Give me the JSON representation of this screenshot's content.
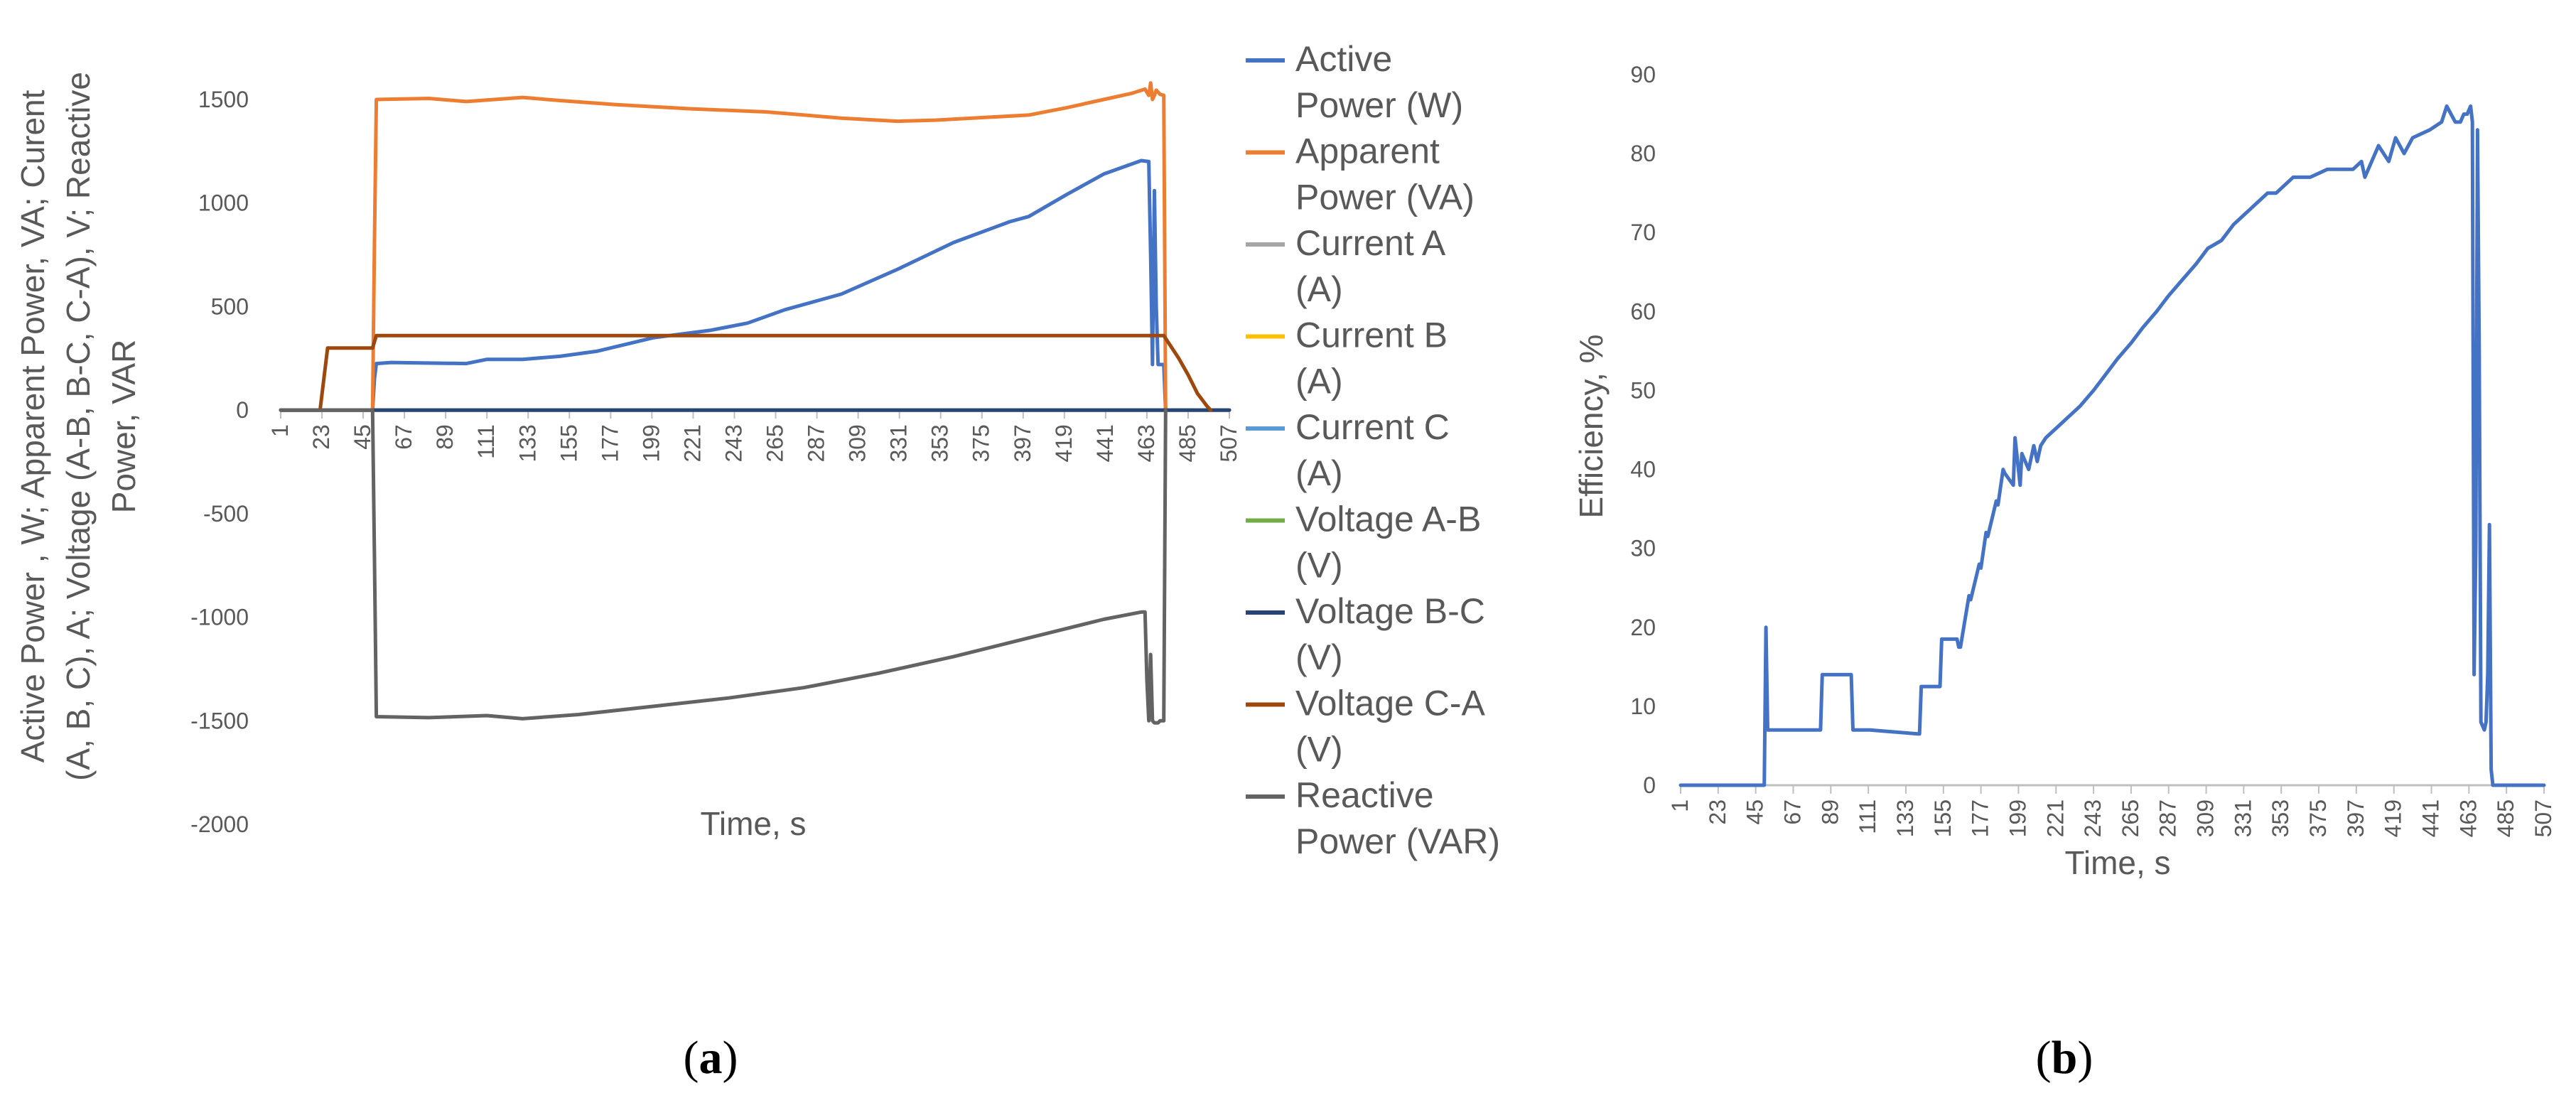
{
  "chart_data": [
    {
      "id": "a",
      "type": "line",
      "panel_label": "a",
      "xlabel": "Time, s",
      "ylabel_lines": [
        "Active Power , W; Apparent Power, VA; Curent",
        "(A, B, C), A; Voltage  (A-B, B-C, C-A), V; Reactive",
        "Power, VAR"
      ],
      "ylim": [
        -2000,
        1500
      ],
      "yticks": [
        1500,
        1000,
        500,
        0,
        -500,
        -1000,
        -1500,
        -2000
      ],
      "xlim": [
        1,
        507
      ],
      "xtick_labels": [
        "1",
        "23",
        "45",
        "67",
        "89",
        "111",
        "133",
        "155",
        "177",
        "199",
        "221",
        "243",
        "265",
        "287",
        "309",
        "331",
        "353",
        "375",
        "397",
        "419",
        "441",
        "463",
        "485",
        "507"
      ],
      "series": [
        {
          "name": "Active Power (W)",
          "legend_lines": [
            "Active",
            "Power (W)"
          ],
          "color": "#4472C4",
          "x": [
            1,
            50,
            51,
            52,
            60,
            100,
            111,
            130,
            150,
            170,
            200,
            230,
            250,
            270,
            300,
            330,
            360,
            390,
            400,
            420,
            440,
            460,
            464,
            465,
            466,
            467,
            468,
            469,
            470,
            472,
            473
          ],
          "y": [
            0,
            0,
            150,
            225,
            230,
            225,
            245,
            245,
            260,
            285,
            350,
            385,
            420,
            485,
            560,
            680,
            810,
            910,
            935,
            1040,
            1140,
            1205,
            1200,
            750,
            220,
            1060,
            500,
            220,
            220,
            220,
            0
          ]
        },
        {
          "name": "Apparent Power (VA)",
          "legend_lines": [
            "Apparent",
            "Power (VA)"
          ],
          "color": "#ED7D31",
          "x": [
            1,
            50,
            51,
            52,
            80,
            100,
            130,
            150,
            180,
            220,
            260,
            300,
            330,
            350,
            380,
            400,
            420,
            440,
            455,
            462,
            464,
            465,
            466,
            467,
            468,
            470,
            472,
            473
          ],
          "y": [
            0,
            0,
            800,
            1500,
            1505,
            1490,
            1510,
            1495,
            1475,
            1455,
            1440,
            1410,
            1395,
            1400,
            1415,
            1425,
            1460,
            1500,
            1530,
            1550,
            1520,
            1580,
            1500,
            1520,
            1545,
            1525,
            1520,
            0
          ]
        },
        {
          "name": "Current A (A)",
          "legend_lines": [
            "Current A",
            "(A)"
          ],
          "color": "#A5A5A5",
          "x": [
            1,
            507
          ],
          "y": [
            0,
            0
          ]
        },
        {
          "name": "Current B (A)",
          "legend_lines": [
            "Current B",
            "(A)"
          ],
          "color": "#FFC000",
          "x": [
            1,
            507
          ],
          "y": [
            0,
            0
          ]
        },
        {
          "name": "Current C (A)",
          "legend_lines": [
            "Current C",
            "(A)"
          ],
          "color": "#5B9BD5",
          "x": [
            1,
            507
          ],
          "y": [
            0,
            0
          ]
        },
        {
          "name": "Voltage A-B (V)",
          "legend_lines": [
            "Voltage A-B",
            "(V)"
          ],
          "color": "#70AD47",
          "x": [
            1,
            507
          ],
          "y": [
            0,
            0
          ]
        },
        {
          "name": "Voltage B-C (V)",
          "legend_lines": [
            "Voltage B-C",
            "(V)"
          ],
          "color": "#264478",
          "x": [
            1,
            507
          ],
          "y": [
            0,
            0
          ]
        },
        {
          "name": "Voltage C-A (V)",
          "legend_lines": [
            "Voltage C-A",
            "(V)"
          ],
          "color": "#9E480E",
          "x": [
            1,
            22,
            26,
            50,
            51,
            52,
            470,
            472,
            480,
            485,
            490,
            495,
            497
          ],
          "y": [
            0,
            0,
            300,
            300,
            330,
            360,
            360,
            360,
            250,
            170,
            80,
            20,
            0
          ]
        },
        {
          "name": "Reactive Power (VAR)",
          "legend_lines": [
            "Reactive",
            "Power (VAR)"
          ],
          "color": "#636363",
          "x": [
            1,
            50,
            51,
            52,
            80,
            111,
            130,
            160,
            200,
            240,
            280,
            320,
            360,
            400,
            440,
            460,
            462,
            463,
            464,
            465,
            466,
            467,
            468,
            469,
            470,
            472,
            473
          ],
          "y": [
            0,
            0,
            -700,
            -1480,
            -1485,
            -1475,
            -1490,
            -1470,
            -1430,
            -1390,
            -1340,
            -1270,
            -1190,
            -1100,
            -1010,
            -975,
            -975,
            -1300,
            -1500,
            -1180,
            -1500,
            -1510,
            -1510,
            -1510,
            -1500,
            -1500,
            0
          ]
        }
      ]
    },
    {
      "id": "b",
      "type": "line",
      "panel_label": "b",
      "xlabel": "Time, s",
      "ylabel": "Efficiency, %",
      "ylim": [
        0,
        90
      ],
      "yticks": [
        90,
        80,
        70,
        60,
        50,
        40,
        30,
        20,
        10,
        0
      ],
      "xlim": [
        1,
        507
      ],
      "xtick_labels": [
        "1",
        "23",
        "45",
        "67",
        "89",
        "111",
        "133",
        "155",
        "177",
        "199",
        "221",
        "243",
        "265",
        "287",
        "309",
        "331",
        "353",
        "375",
        "397",
        "419",
        "441",
        "463",
        "485",
        "507"
      ],
      "series": [
        {
          "name": "Efficiency",
          "color": "#4472C4",
          "x": [
            1,
            50,
            51,
            52,
            53,
            68,
            69,
            83,
            84,
            101,
            102,
            111,
            112,
            140,
            141,
            142,
            153,
            154,
            163,
            164,
            165,
            170,
            171,
            176,
            177,
            180,
            181,
            186,
            187,
            190,
            191,
            196,
            197,
            200,
            201,
            205,
            208,
            210,
            212,
            215,
            220,
            225,
            230,
            235,
            243,
            250,
            257,
            265,
            272,
            280,
            287,
            295,
            303,
            310,
            318,
            325,
            330,
            335,
            340,
            345,
            350,
            355,
            360,
            370,
            380,
            385,
            395,
            400,
            402,
            404,
            410,
            416,
            420,
            425,
            430,
            440,
            447,
            450,
            455,
            458,
            460,
            462,
            464,
            465,
            466,
            467,
            468,
            469,
            470,
            472,
            473,
            474,
            475,
            476,
            477,
            478,
            479,
            480,
            507
          ],
          "y": [
            0,
            0,
            20,
            7,
            7,
            7,
            7,
            7,
            14,
            14,
            7,
            7,
            7,
            6.5,
            6.5,
            12.5,
            12.5,
            18.5,
            18.5,
            17.5,
            17.5,
            24,
            23.5,
            28,
            27.5,
            32,
            31.5,
            36,
            35.5,
            40,
            39.5,
            38,
            44,
            38,
            42,
            40,
            43,
            41,
            43,
            44,
            45,
            46,
            47,
            48,
            50,
            52,
            54,
            56,
            58,
            60,
            62,
            64,
            66,
            68,
            69,
            71,
            72,
            73,
            74,
            75,
            75,
            76,
            77,
            77,
            78,
            78,
            78,
            79,
            77,
            78,
            81,
            79,
            82,
            80,
            82,
            83,
            84,
            86,
            84,
            84,
            85,
            85,
            86,
            84,
            14,
            30,
            83,
            55,
            8,
            7,
            8,
            14,
            33,
            2,
            0,
            0,
            0,
            0,
            0
          ]
        }
      ]
    }
  ],
  "colors": {
    "axis": "#BFBFBF",
    "text": "#595959"
  }
}
